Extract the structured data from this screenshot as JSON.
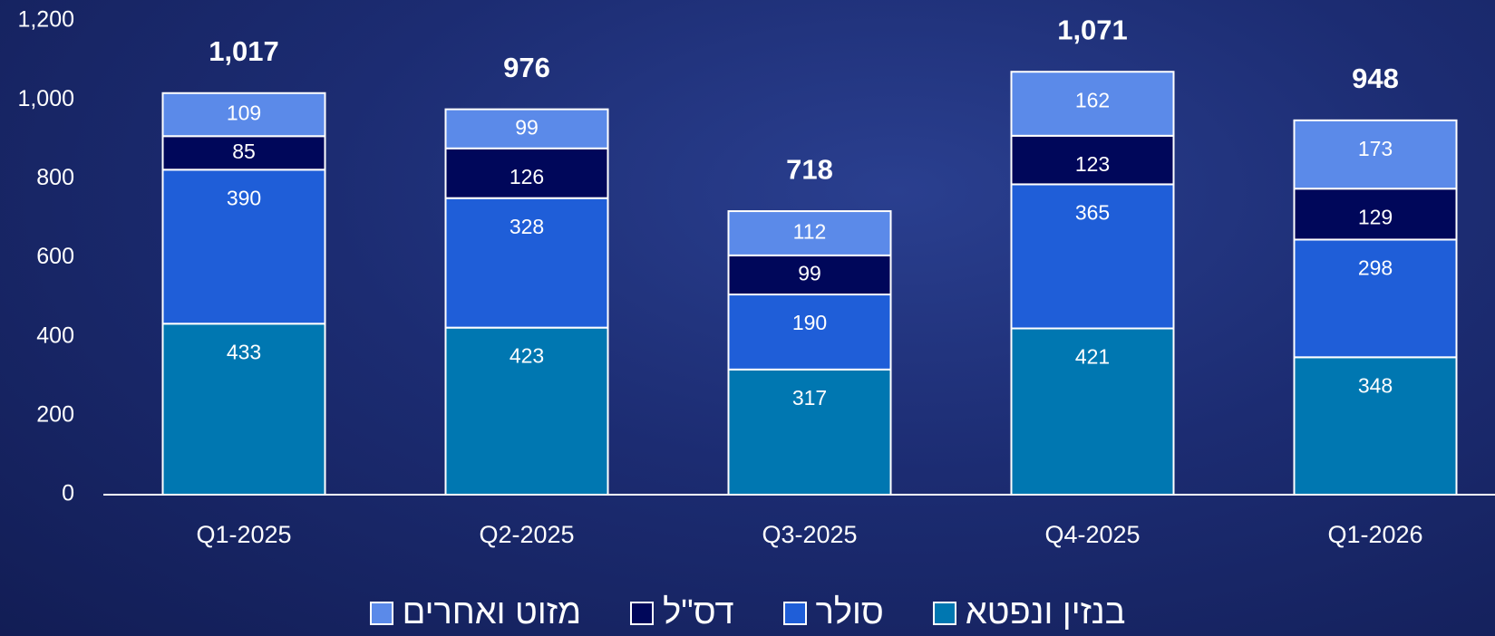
{
  "chart_data": {
    "type": "stacked_bar",
    "categories": [
      "Q1-2025",
      "Q2-2025",
      "Q3-2025",
      "Q4-2025",
      "Q1-2026"
    ],
    "series": [
      {
        "name": "בנזין ונפטא",
        "color": "#0077b1",
        "values": [
          433,
          423,
          317,
          421,
          348
        ]
      },
      {
        "name": "סולר",
        "color": "#1f5ed8",
        "values": [
          390,
          328,
          190,
          365,
          298
        ]
      },
      {
        "name": "דס\"ל",
        "color": "#00075a",
        "values": [
          85,
          126,
          99,
          123,
          129
        ]
      },
      {
        "name": "מזוט ואחרים",
        "color": "#5b8ae9",
        "values": [
          109,
          99,
          112,
          162,
          173
        ]
      }
    ],
    "totals": [
      1017,
      976,
      718,
      1071,
      948
    ],
    "total_labels": [
      "1,017",
      "976",
      "718",
      "1,071",
      "948"
    ],
    "ylim": [
      0,
      1200
    ],
    "yticks": [
      0,
      200,
      400,
      600,
      800,
      {
        "value": 1000,
        "label": "1,000"
      },
      {
        "value": 1200,
        "label": "1,200"
      }
    ]
  }
}
